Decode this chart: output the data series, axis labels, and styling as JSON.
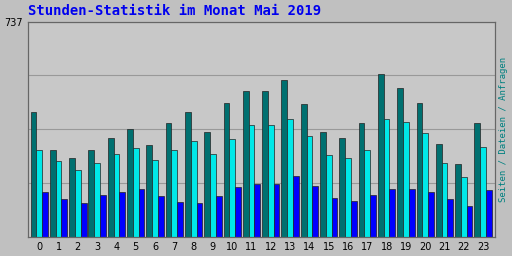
{
  "title": "Stunden-Statistik im Monat Mai 2019",
  "title_color": "#0000ee",
  "background_color": "#c0c0c0",
  "plot_bg_color": "#c8c8c8",
  "ylabel_right": "Seiten / Dateien / Anfragen",
  "ylabel_right_color": "#008080",
  "hours": [
    0,
    1,
    2,
    3,
    4,
    5,
    6,
    7,
    8,
    9,
    10,
    11,
    12,
    13,
    14,
    15,
    16,
    17,
    18,
    19,
    20,
    21,
    22,
    23
  ],
  "seiten": [
    430,
    300,
    270,
    300,
    340,
    370,
    315,
    390,
    430,
    360,
    460,
    500,
    500,
    540,
    455,
    360,
    340,
    390,
    560,
    510,
    460,
    320,
    250,
    390
  ],
  "dateien": [
    300,
    260,
    230,
    255,
    285,
    305,
    265,
    300,
    330,
    285,
    335,
    385,
    385,
    405,
    345,
    280,
    270,
    300,
    405,
    395,
    355,
    255,
    205,
    310
  ],
  "anfragen": [
    155,
    130,
    115,
    145,
    155,
    165,
    140,
    120,
    115,
    140,
    170,
    180,
    180,
    210,
    175,
    135,
    125,
    145,
    165,
    165,
    155,
    130,
    105,
    160
  ],
  "ylim": [
    0,
    737
  ],
  "ytick": 737,
  "colors": {
    "seiten": "#007070",
    "dateien": "#00e8e8",
    "anfragen": "#0000ff"
  },
  "bar_width": 0.3,
  "edgecolor": "#222222",
  "grid_color": "#999999",
  "tick_fontsize": 7,
  "title_fontsize": 10
}
